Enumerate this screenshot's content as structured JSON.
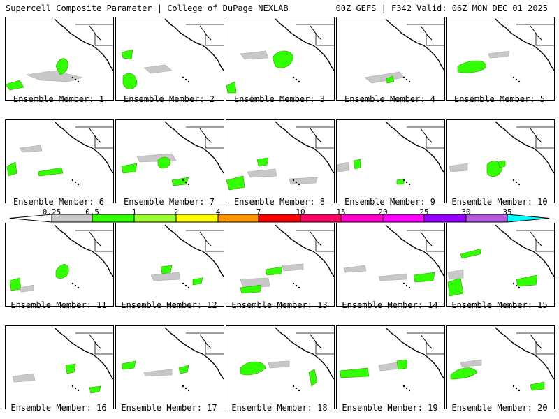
{
  "header": {
    "left": "Supercell Composite Parameter | College of DuPage NEXLAB",
    "right": "00Z GEFS | F342 Valid: 06Z MON DEC 01 2025"
  },
  "members": [
    {
      "label": "Ensemble Member: 1"
    },
    {
      "label": "Ensemble Member: 2"
    },
    {
      "label": "Ensemble Member: 3"
    },
    {
      "label": "Ensemble Member: 4"
    },
    {
      "label": "Ensemble Member: 5"
    },
    {
      "label": "Ensemble Member: 6"
    },
    {
      "label": "Ensemble Member: 7"
    },
    {
      "label": "Ensemble Member: 8"
    },
    {
      "label": "Ensemble Member: 9"
    },
    {
      "label": "Ensemble Member: 10"
    },
    {
      "label": "Ensemble Member: 11"
    },
    {
      "label": "Ensemble Member: 12"
    },
    {
      "label": "Ensemble Member: 13"
    },
    {
      "label": "Ensemble Member: 14"
    },
    {
      "label": "Ensemble Member: 15"
    },
    {
      "label": "Ensemble Member: 16"
    },
    {
      "label": "Ensemble Member: 17"
    },
    {
      "label": "Ensemble Member: 18"
    },
    {
      "label": "Ensemble Member: 19"
    },
    {
      "label": "Ensemble Member: 20"
    }
  ],
  "colorbar": {
    "ticks": [
      "0.25",
      "0.5",
      "1",
      "2",
      "4",
      "7",
      "10",
      "15",
      "20",
      "25",
      "30",
      "35"
    ],
    "colors": [
      "#ffffff",
      "#c8c8c8",
      "#32ff00",
      "#9bff32",
      "#ffff00",
      "#ff9600",
      "#ff0000",
      "#ff0064",
      "#ff00c8",
      "#ff00ff",
      "#9600ff",
      "#b45adc",
      "#00ffff"
    ]
  }
}
